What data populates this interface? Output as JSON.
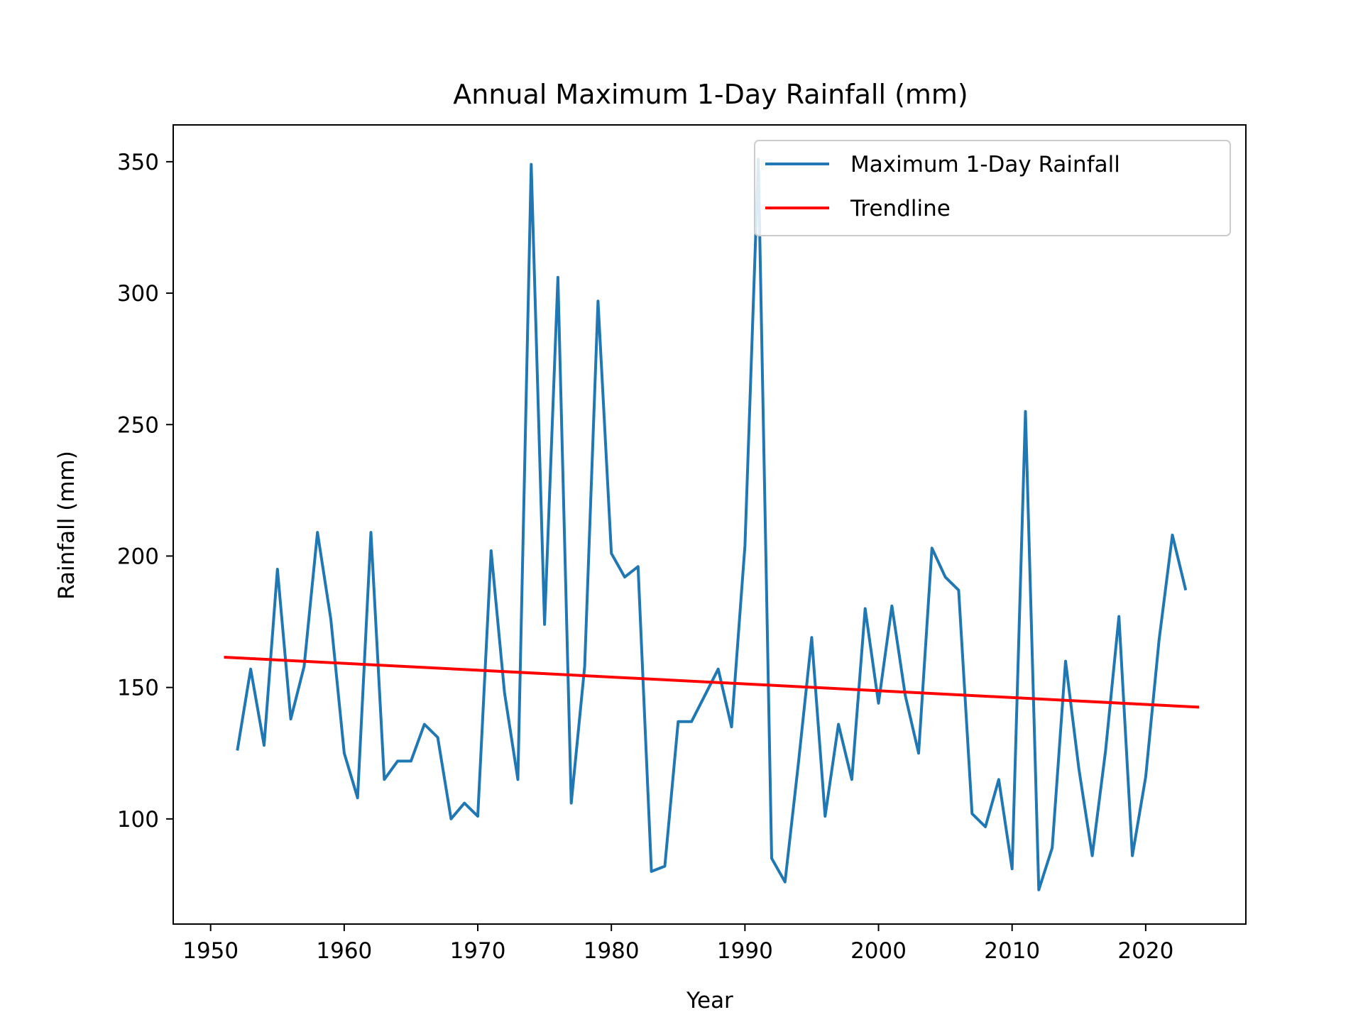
{
  "chart_data": {
    "type": "line",
    "title": "Annual Maximum 1-Day Rainfall (mm)",
    "xlabel": "Year",
    "ylabel": "Rainfall (mm)",
    "xlim": [
      1947.2,
      2027.5
    ],
    "ylim": [
      60,
      364
    ],
    "xticks": [
      1950,
      1960,
      1970,
      1980,
      1990,
      2000,
      2010,
      2020
    ],
    "yticks": [
      100,
      150,
      200,
      250,
      300,
      350
    ],
    "grid": false,
    "legend_position": "top-right",
    "series": [
      {
        "name": "Maximum 1-Day Rainfall",
        "color": "#1f77b4",
        "x": [
          1952,
          1953,
          1954,
          1955,
          1956,
          1957,
          1958,
          1959,
          1960,
          1961,
          1962,
          1963,
          1964,
          1965,
          1966,
          1967,
          1968,
          1969,
          1970,
          1971,
          1972,
          1973,
          1974,
          1975,
          1976,
          1977,
          1978,
          1979,
          1980,
          1981,
          1982,
          1983,
          1984,
          1985,
          1986,
          1987,
          1988,
          1989,
          1990,
          1991,
          1992,
          1993,
          1994,
          1995,
          1996,
          1997,
          1998,
          1999,
          2000,
          2001,
          2002,
          2003,
          2004,
          2005,
          2006,
          2007,
          2008,
          2009,
          2010,
          2011,
          2012,
          2013,
          2014,
          2015,
          2016,
          2017,
          2018,
          2019,
          2020,
          2021,
          2022,
          2023
        ],
        "y": [
          126,
          157,
          128,
          195,
          138,
          158,
          209,
          176,
          125,
          108,
          209,
          115,
          122,
          122,
          136,
          131,
          100,
          106,
          101,
          202,
          148,
          115,
          349,
          174,
          306,
          106,
          158,
          297,
          201,
          192,
          196,
          80,
          82,
          137,
          137,
          147,
          157,
          135,
          204,
          351,
          85,
          76,
          121,
          169,
          101,
          136,
          115,
          180,
          144,
          181,
          147,
          125,
          203,
          192,
          187,
          102,
          97,
          115,
          81,
          255,
          73,
          89,
          160,
          119,
          86,
          126,
          177,
          86,
          116,
          168,
          208,
          187
        ]
      },
      {
        "name": "Trendline",
        "color": "#ff0000",
        "x": [
          1951,
          2024
        ],
        "y": [
          161.5,
          142.5
        ]
      }
    ]
  }
}
